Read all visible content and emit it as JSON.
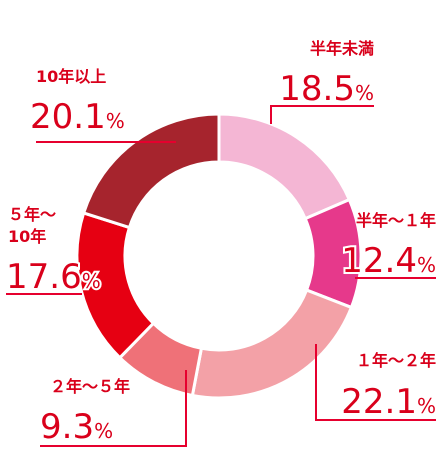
{
  "chart_data": {
    "type": "pie",
    "style": "donut",
    "unit": "%",
    "legend": "none",
    "slices": [
      {
        "label": "半年未満",
        "value": 18.5,
        "color": "#f4b6d4"
      },
      {
        "label": "半年～１年",
        "value": 12.4,
        "color": "#e6398b"
      },
      {
        "label": "１年～２年",
        "value": 22.1,
        "color": "#f3a1a7"
      },
      {
        "label": "２年～５年",
        "value": 9.3,
        "color": "#ef7178"
      },
      {
        "label": "５年～10年",
        "value": 17.6,
        "color": "#e60012"
      },
      {
        "label": "10年以上",
        "value": 20.1,
        "color": "#a6242d"
      }
    ]
  }
}
